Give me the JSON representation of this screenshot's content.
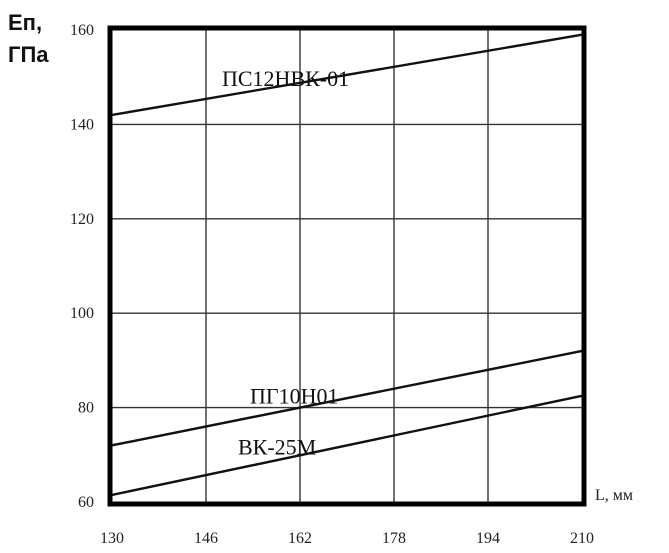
{
  "chart_data": {
    "type": "line",
    "title": "",
    "ylabel": "Eп, ГПа",
    "ylabel_lines": [
      "Eп,",
      "ГПа"
    ],
    "xlabel": "L, мм",
    "xlim": [
      130,
      210
    ],
    "ylim": [
      60,
      160
    ],
    "xticks": [
      130,
      146,
      162,
      178,
      194,
      210
    ],
    "yticks": [
      60,
      80,
      100,
      120,
      140,
      160
    ],
    "grid": true,
    "series": [
      {
        "name": "ПС12НВК-01",
        "x": [
          130,
          210
        ],
        "y": [
          142,
          159
        ]
      },
      {
        "name": "ПГ10Н01",
        "x": [
          130,
          210
        ],
        "y": [
          72,
          92
        ]
      },
      {
        "name": "ВК-25М",
        "x": [
          130,
          210
        ],
        "y": [
          61.5,
          82.5
        ]
      }
    ]
  }
}
